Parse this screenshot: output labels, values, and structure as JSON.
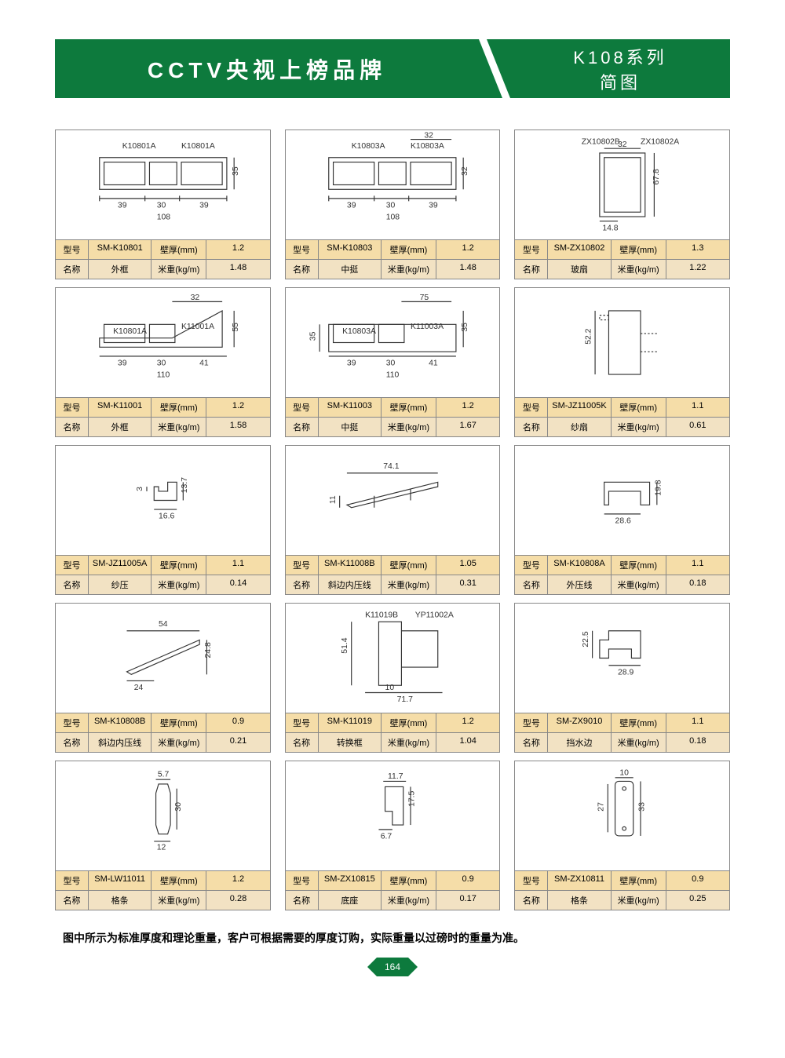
{
  "header": {
    "title": "CCTV央视上榜品牌",
    "series": "K108系列",
    "subtitle": "简图"
  },
  "labels": {
    "model": "型号",
    "name": "名称",
    "thickness": "壁厚(mm)",
    "weight": "米重(kg/m)"
  },
  "cells": [
    {
      "model": "SM-K10801",
      "name": "外框",
      "thickness": "1.2",
      "weight": "1.48",
      "dims": {
        "w": "108",
        "h": "35",
        "parts": [
          "K10801A",
          "K10801A"
        ],
        "segs": [
          "39",
          "30",
          "39"
        ]
      }
    },
    {
      "model": "SM-K10803",
      "name": "中挺",
      "thickness": "1.2",
      "weight": "1.48",
      "dims": {
        "w": "108",
        "h": "32",
        "parts": [
          "K10803A",
          "K10803A"
        ],
        "segs": [
          "39",
          "30",
          "39"
        ]
      }
    },
    {
      "model": "SM-ZX10802",
      "name": "玻扇",
      "thickness": "1.3",
      "weight": "1.22",
      "dims": {
        "w": "32",
        "h": "67.8",
        "parts": [
          "ZX10802B",
          "ZX10802A"
        ],
        "segs": [
          "14.8"
        ]
      }
    },
    {
      "model": "SM-K11001",
      "name": "外框",
      "thickness": "1.2",
      "weight": "1.58",
      "dims": {
        "w": "110",
        "h": "55",
        "h2": "32",
        "parts": [
          "K10801A",
          "K11001A"
        ],
        "segs": [
          "39",
          "30",
          "41"
        ]
      }
    },
    {
      "model": "SM-K11003",
      "name": "中挺",
      "thickness": "1.2",
      "weight": "1.67",
      "dims": {
        "w": "110",
        "h": "35",
        "h2": "75",
        "parts": [
          "K10803A",
          "K11003A"
        ],
        "segs": [
          "39",
          "30",
          "41"
        ]
      }
    },
    {
      "model": "SM-JZ11005K",
      "name": "纱扇",
      "thickness": "1.1",
      "weight": "0.61",
      "dims": {
        "h": "52.2"
      }
    },
    {
      "model": "SM-JZ11005A",
      "name": "纱压",
      "thickness": "1.1",
      "weight": "0.14",
      "dims": {
        "w": "16.6",
        "h": "13.7",
        "h2": "3"
      }
    },
    {
      "model": "SM-K11008B",
      "name": "斜边内压线",
      "thickness": "1.05",
      "weight": "0.31",
      "dims": {
        "w": "74.1",
        "h": "11"
      }
    },
    {
      "model": "SM-K10808A",
      "name": "外压线",
      "thickness": "1.1",
      "weight": "0.18",
      "dims": {
        "w": "28.6",
        "h": "19.8"
      }
    },
    {
      "model": "SM-K10808B",
      "name": "斜边内压线",
      "thickness": "0.9",
      "weight": "0.21",
      "dims": {
        "w": "54",
        "h": "24.8",
        "w2": "24"
      }
    },
    {
      "model": "SM-K11019",
      "name": "转换框",
      "thickness": "1.2",
      "weight": "1.04",
      "dims": {
        "w": "71.7",
        "h": "51.4",
        "w2": "10",
        "parts": [
          "K11019B",
          "YP11002A"
        ]
      }
    },
    {
      "model": "SM-ZX9010",
      "name": "挡水边",
      "thickness": "1.1",
      "weight": "0.18",
      "dims": {
        "w": "28.9",
        "h": "22.5"
      }
    },
    {
      "model": "SM-LW11011",
      "name": "格条",
      "thickness": "1.2",
      "weight": "0.28",
      "dims": {
        "w": "5.7",
        "h": "30",
        "w2": "12"
      }
    },
    {
      "model": "SM-ZX10815",
      "name": "底座",
      "thickness": "0.9",
      "weight": "0.17",
      "dims": {
        "w": "11.7",
        "h": "17.5",
        "w2": "6.7"
      }
    },
    {
      "model": "SM-ZX10811",
      "name": "格条",
      "thickness": "0.9",
      "weight": "0.25",
      "dims": {
        "w": "10",
        "h": "27",
        "h2": "33"
      }
    }
  ],
  "note": "图中所示为标准厚度和理论重量，客户可根据需要的厚度订购，实际重量以过磅时的重量为准。",
  "page_number": "164",
  "colors": {
    "brand_green": "#0d7a3d",
    "spec_bg1": "#f5dda8",
    "spec_bg2": "#f2e2c3",
    "border": "#888888"
  }
}
